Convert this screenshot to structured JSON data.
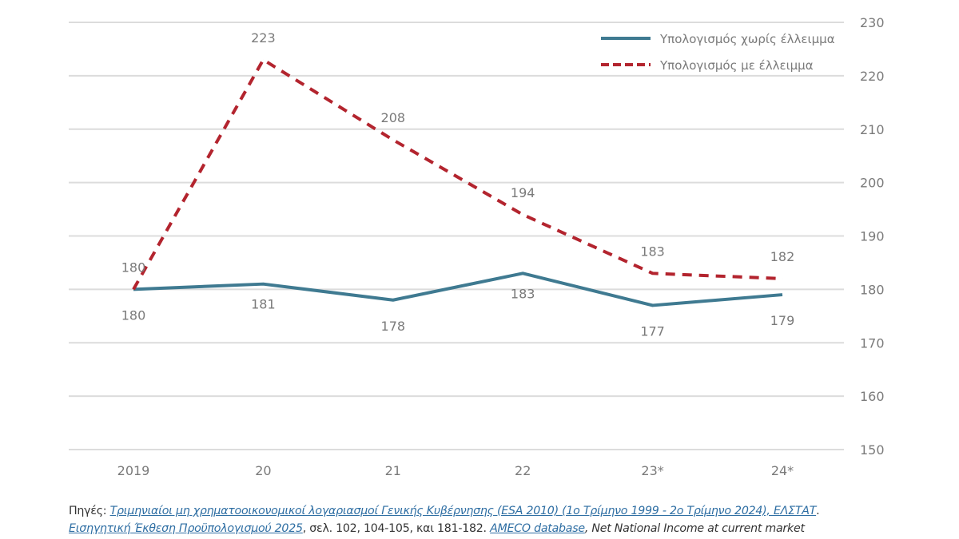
{
  "chart_data": {
    "type": "line",
    "title": "",
    "xlabel": "",
    "ylabel": "",
    "categories": [
      "2019",
      "20",
      "21",
      "22",
      "23*",
      "24*"
    ],
    "ylim": [
      150,
      230
    ],
    "yticks": [
      150,
      160,
      170,
      180,
      190,
      200,
      210,
      220,
      230
    ],
    "y_axis_side": "right",
    "grid": true,
    "legend_position": "top-right",
    "series": [
      {
        "name": "Υπολογισμός χωρίς έλλειμμα",
        "style": "solid",
        "color": "#3F7A91",
        "values": [
          180,
          181,
          178,
          183,
          177,
          179
        ],
        "labels": [
          "180",
          "181",
          "178",
          "183",
          "177",
          "179"
        ],
        "label_position": "below"
      },
      {
        "name": "Υπολογισμός με έλλειμμα",
        "style": "dashed",
        "color": "#B3242E",
        "values": [
          180,
          223,
          208,
          194,
          183,
          182
        ],
        "labels": [
          "180",
          "223",
          "208",
          "194",
          "183",
          "182"
        ],
        "label_position": "above"
      }
    ]
  },
  "sources": {
    "prefix": "Πηγές: ",
    "link1": "Τριμηνιαίοι μη χρηματοοικονομικοί λογαριασμοί Γενικής Κυβέρνησης (ESA 2010) (1ο Τρίμηνο 1999 - 2ο Τρίμηνο 2024), ΕΛΣΤΑΤ",
    "after_link1": ".",
    "link2": "Εισηγητική Έκθεση Προϋπολογισμού 2025",
    "after_link2": ", σελ.  102, 104-105, και 181-182. ",
    "link3": "AMECO database",
    "after_link3": ", Net National Income at current market"
  },
  "colors": {
    "grid": "#dcdcdc",
    "text": "#7a7a7a",
    "link": "#2e6ea3"
  }
}
